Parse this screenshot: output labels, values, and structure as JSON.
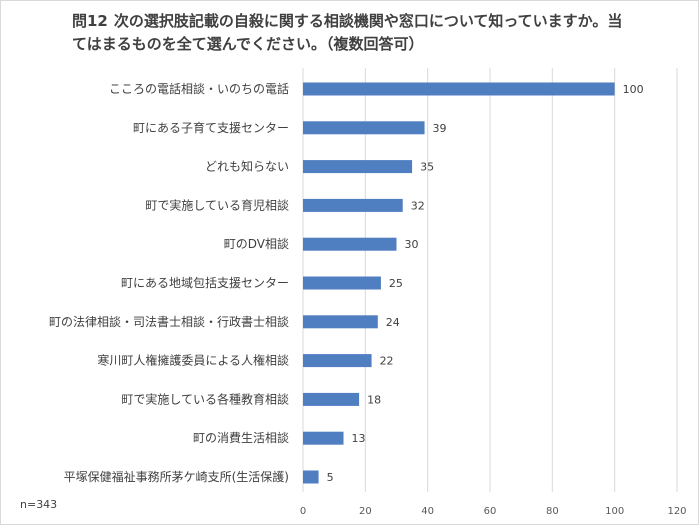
{
  "title": {
    "question_number": "問12",
    "text": "次の選択肢記載の自殺に関する相談機関や窓口について知っていますか。当てはまるものを全て選んでください。（複数回答可）"
  },
  "note": "n=343",
  "colors": {
    "bar": "#4f7ec1",
    "grid": "#d9d9d9"
  },
  "chart_data": {
    "type": "bar",
    "orientation": "horizontal",
    "title": "問12 次の選択肢記載の自殺に関する相談機関や窓口について知っていますか。当てはまるものを全て選んでください。（複数回答可）",
    "categories": [
      "こころの電話相談・いのちの電話",
      "町にある子育て支援センター",
      "どれも知らない",
      "町で実施している育児相談",
      "町のDV相談",
      "町にある地域包括支援センター",
      "町の法律相談・司法書士相談・行政書士相談",
      "寒川町人権擁護委員による人権相談",
      "町で実施している各種教育相談",
      "町の消費生活相談",
      "平塚保健福祉事務所茅ケ崎支所(生活保護)"
    ],
    "values": [
      100,
      39,
      35,
      32,
      30,
      25,
      24,
      22,
      18,
      13,
      5
    ],
    "xlim": [
      0,
      120
    ],
    "xticks": [
      0,
      20,
      40,
      60,
      80,
      100,
      120
    ],
    "grid": true,
    "xlabel": "",
    "ylabel": ""
  }
}
